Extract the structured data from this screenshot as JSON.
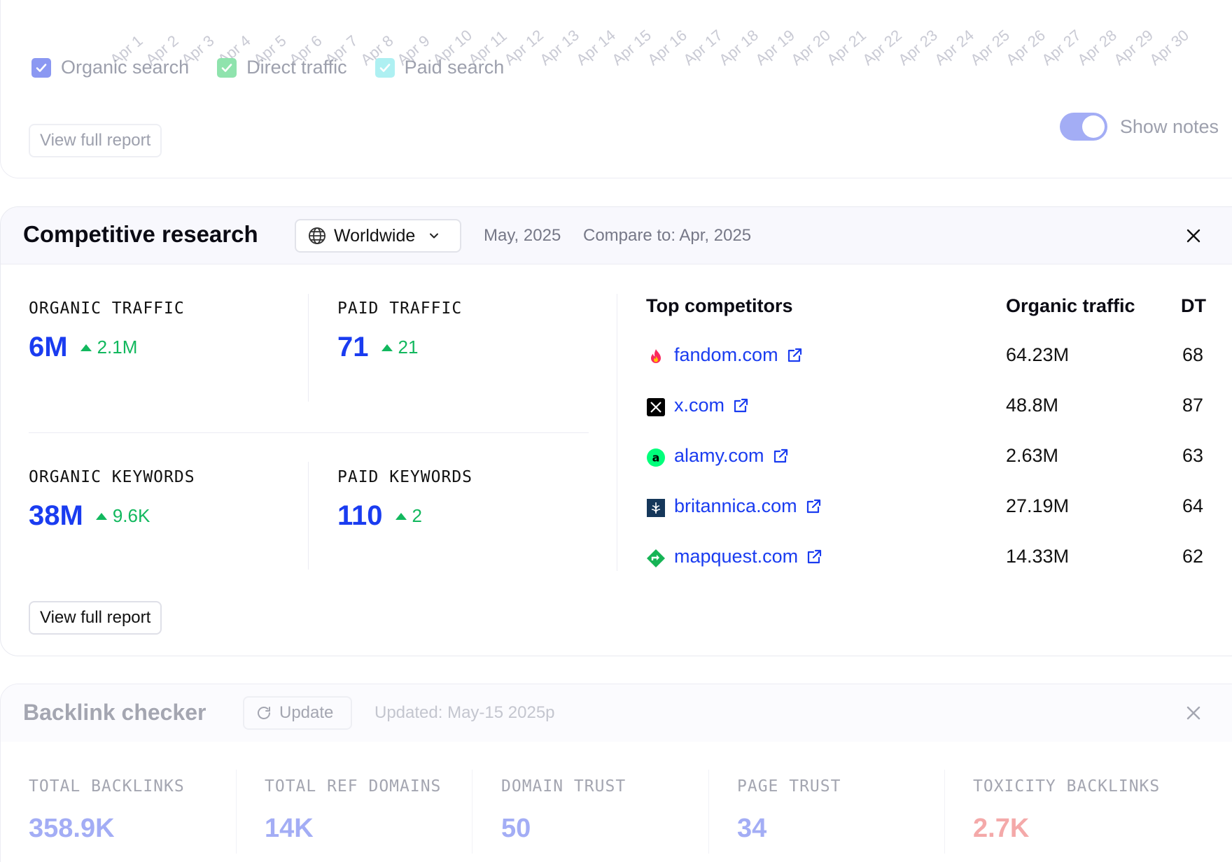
{
  "traffic_chart": {
    "x_labels": [
      "Apr 1",
      "Apr 2",
      "Apr 3",
      "Apr 4",
      "Apr 5",
      "Apr 6",
      "Apr 7",
      "Apr 8",
      "Apr 9",
      "Apr 10",
      "Apr 11",
      "Apr 12",
      "Apr 13",
      "Apr 14",
      "Apr 15",
      "Apr 16",
      "Apr 17",
      "Apr 18",
      "Apr 19",
      "Apr 20",
      "Apr 21",
      "Apr 22",
      "Apr 23",
      "Apr 24",
      "Apr 25",
      "Apr 26",
      "Apr 27",
      "Apr 28",
      "Apr 29",
      "Apr 30"
    ],
    "legend": [
      {
        "label": "Organic search",
        "color": "#8b98f2"
      },
      {
        "label": "Direct traffic",
        "color": "#8fe3ad"
      },
      {
        "label": "Paid search",
        "color": "#aef0f2"
      }
    ],
    "view_report_label": "View full report",
    "show_notes_label": "Show notes",
    "show_notes_on": true
  },
  "competitive": {
    "title": "Competitive research",
    "region": "Worldwide",
    "period": "May, 2025",
    "compare": "Compare to: Apr, 2025",
    "metrics": [
      {
        "label": "ORGANIC TRAFFIC",
        "value": "6M",
        "delta": "2.1M"
      },
      {
        "label": "PAID TRAFFIC",
        "value": "71",
        "delta": "21"
      },
      {
        "label": "ORGANIC KEYWORDS",
        "value": "38M",
        "delta": "9.6K"
      },
      {
        "label": "PAID KEYWORDS",
        "value": "110",
        "delta": "2"
      }
    ],
    "table": {
      "col_competitor": "Top competitors",
      "col_traffic": "Organic traffic",
      "col_dt": "DT",
      "rows": [
        {
          "domain": "fandom.com",
          "traffic": "64.23M",
          "dt": "68"
        },
        {
          "domain": "x.com",
          "traffic": "48.8M",
          "dt": "87"
        },
        {
          "domain": "alamy.com",
          "traffic": "2.63M",
          "dt": "63"
        },
        {
          "domain": "britannica.com",
          "traffic": "27.19M",
          "dt": "64"
        },
        {
          "domain": "mapquest.com",
          "traffic": "14.33M",
          "dt": "62"
        }
      ]
    },
    "view_report_label": "View full report"
  },
  "backlinks": {
    "title": "Backlink checker",
    "update_label": "Update",
    "updated": "Updated: May-15 2025p",
    "metrics": [
      {
        "label": "TOTAL BACKLINKS",
        "value": "358.9K"
      },
      {
        "label": "TOTAL REF DOMAINS",
        "value": "14K"
      },
      {
        "label": "DOMAIN TRUST",
        "value": "50"
      },
      {
        "label": "PAGE TRUST",
        "value": "34"
      },
      {
        "label": "TOXICITY BACKLINKS",
        "value": "2.7K"
      }
    ]
  }
}
